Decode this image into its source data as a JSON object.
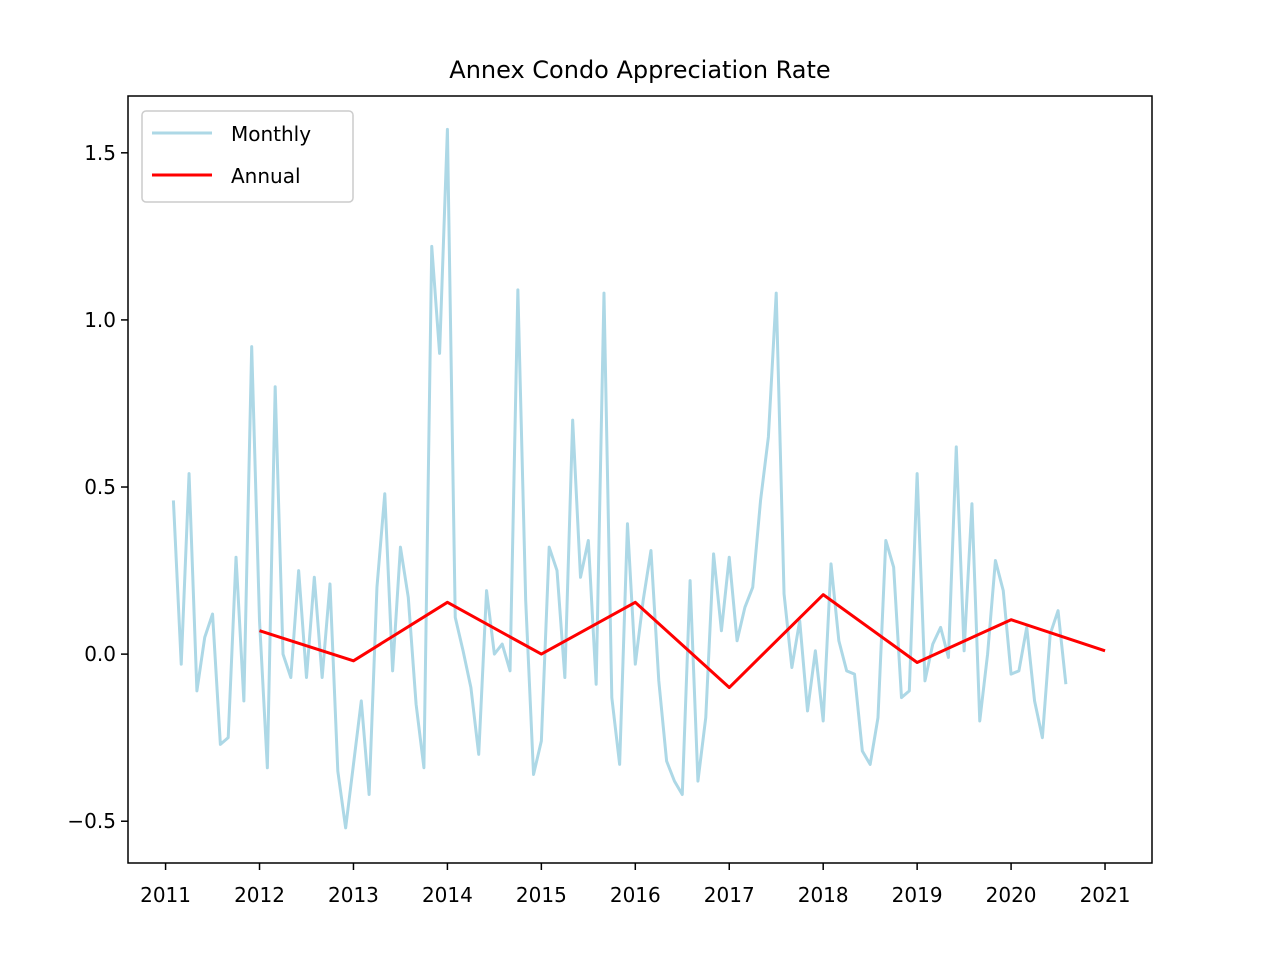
{
  "chart_data": {
    "type": "line",
    "title": "Annex Condo Appreciation Rate",
    "xlabel": "",
    "ylabel": "",
    "xlim": [
      2010.6,
      2021.5
    ],
    "ylim": [
      -0.625,
      1.67
    ],
    "x_ticks": [
      2011,
      2012,
      2013,
      2014,
      2015,
      2016,
      2017,
      2018,
      2019,
      2020,
      2021
    ],
    "y_ticks": [
      -0.5,
      0.0,
      0.5,
      1.0,
      1.5
    ],
    "y_tick_labels": [
      "−0.5",
      "0.0",
      "0.5",
      "1.0",
      "1.5"
    ],
    "grid": false,
    "legend_position": "top-left",
    "series": [
      {
        "name": "Monthly",
        "color": "#add8e6",
        "x_start": 2011.0833,
        "x_step": 0.0833333,
        "values": [
          0.46,
          -0.03,
          0.54,
          -0.11,
          0.05,
          0.12,
          -0.27,
          -0.25,
          0.29,
          -0.14,
          0.92,
          0.1,
          -0.34,
          0.8,
          0.0,
          -0.07,
          0.25,
          -0.07,
          0.23,
          -0.07,
          0.21,
          -0.35,
          -0.52,
          -0.33,
          -0.14,
          -0.42,
          0.2,
          0.48,
          -0.05,
          0.32,
          0.17,
          -0.15,
          -0.34,
          1.22,
          0.9,
          1.57,
          0.11,
          0.01,
          -0.1,
          -0.3,
          0.19,
          0.0,
          0.03,
          -0.05,
          1.09,
          0.16,
          -0.36,
          -0.26,
          0.32,
          0.25,
          -0.07,
          0.7,
          0.23,
          0.34,
          -0.09,
          1.08,
          -0.13,
          -0.33,
          0.39,
          -0.03,
          0.16,
          0.31,
          -0.08,
          -0.32,
          -0.38,
          -0.42,
          0.22,
          -0.38,
          -0.19,
          0.3,
          0.07,
          0.29,
          0.04,
          0.14,
          0.2,
          0.46,
          0.65,
          1.08,
          0.18,
          -0.04,
          0.1,
          -0.17,
          0.01,
          -0.2,
          0.27,
          0.04,
          -0.05,
          -0.06,
          -0.29,
          -0.33,
          -0.19,
          0.34,
          0.26,
          -0.13,
          -0.11,
          0.54,
          -0.08,
          0.03,
          0.08,
          -0.01,
          0.62,
          0.01,
          0.45,
          -0.2,
          0.0,
          0.28,
          0.19,
          -0.06,
          -0.05,
          0.08,
          -0.14,
          -0.25,
          0.06,
          0.13,
          -0.09
        ]
      },
      {
        "name": "Annual",
        "color": "#ff0000",
        "x": [
          2012,
          2013,
          2014,
          2015,
          2016,
          2017,
          2018,
          2019,
          2020,
          2021
        ],
        "values": [
          0.07,
          -0.02,
          0.155,
          0.0,
          0.155,
          -0.1,
          0.178,
          -0.025,
          0.103,
          0.01
        ]
      }
    ]
  }
}
